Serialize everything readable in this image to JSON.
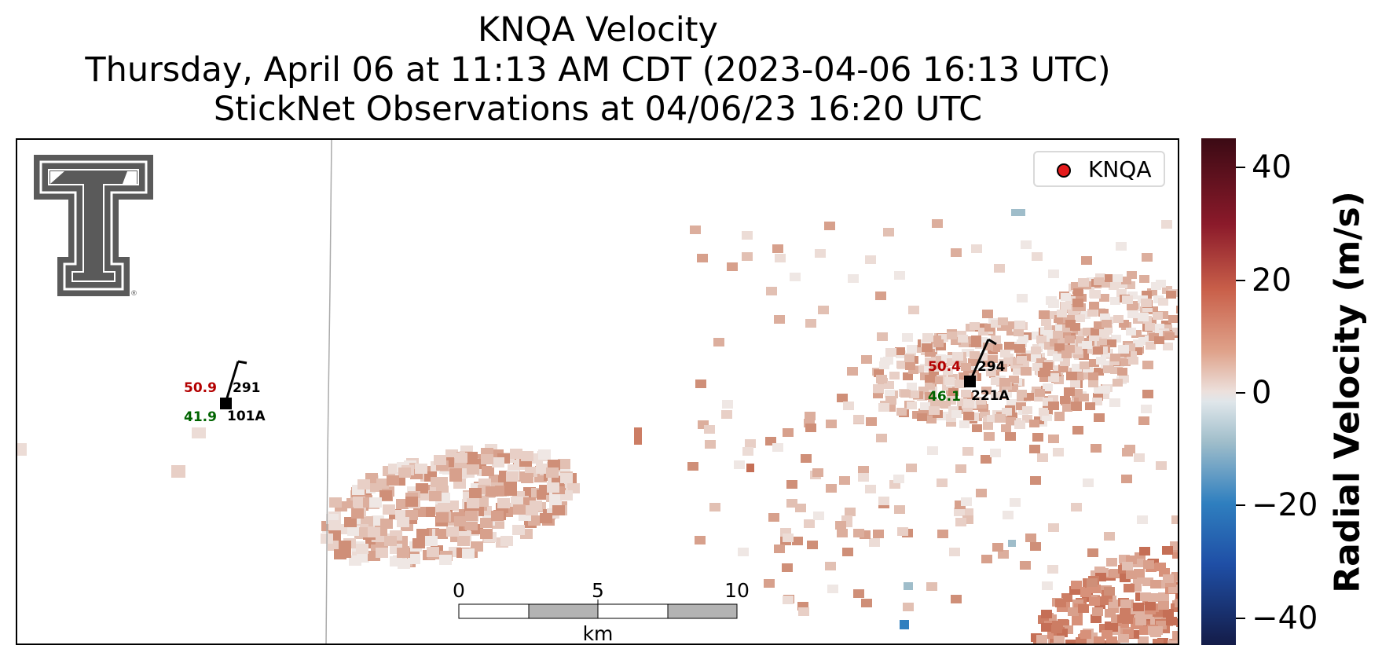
{
  "title": {
    "line1": "KNQA Velocity",
    "line2": "Thursday, April 06 at 11:13 AM CDT (2023-04-06 16:13 UTC)",
    "line3": "StickNet Observations at 04/06/23 16:20 UTC"
  },
  "legend": {
    "label": "KNQA",
    "marker_color": "#e41a1c"
  },
  "stations": [
    {
      "id": "101A",
      "temperature": "50.9",
      "dewpoint": "41.9",
      "wind_dir": "291"
    },
    {
      "id": "221A",
      "temperature": "50.4",
      "dewpoint": "46.1",
      "wind_dir": "294"
    }
  ],
  "scale_bar": {
    "labels": [
      "0",
      "5",
      "10"
    ],
    "unit": "km"
  },
  "colorbar": {
    "label": "Radial Velocity (m/s)",
    "ticks": [
      "40",
      "20",
      "0",
      "−20",
      "−40"
    ],
    "range": [
      -45,
      45
    ]
  },
  "colors": {
    "temperature": "#b30000",
    "dewpoint": "#006400",
    "positive_velocity": "#c9604a",
    "negative_velocity": "#2f7fbf"
  },
  "logo": {
    "name": "Texas Tech Double T",
    "mark": "®"
  }
}
